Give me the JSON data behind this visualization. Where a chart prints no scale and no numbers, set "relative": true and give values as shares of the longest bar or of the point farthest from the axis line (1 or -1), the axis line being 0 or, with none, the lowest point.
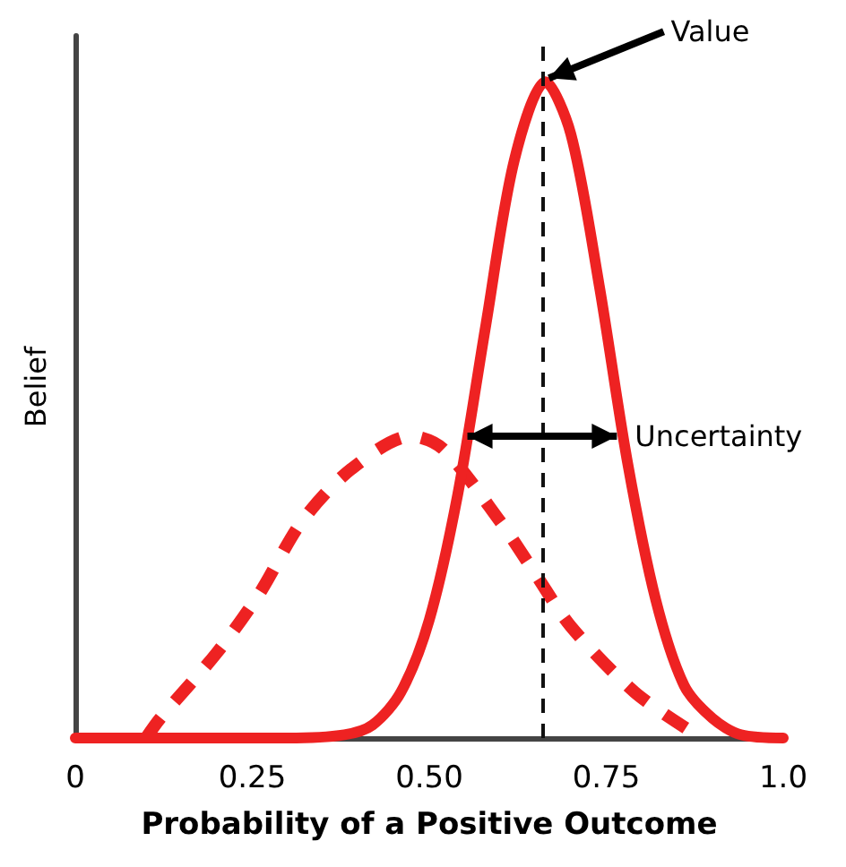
{
  "chart_data": {
    "type": "line",
    "relative": true,
    "xlabel": "Probability of a Positive Outcome",
    "ylabel": "Belief",
    "xlim": [
      0,
      1
    ],
    "xticks": [
      0,
      0.25,
      {
        "value": 0.5,
        "label": "0.50"
      },
      0.75,
      {
        "value": 1,
        "label": "1.0"
      }
    ],
    "grid": false,
    "marker": "none",
    "series": [
      {
        "color": "#ee2222",
        "line_style": "solid",
        "x": [
          0,
          0.3,
          0.38,
          0.42,
          0.46,
          0.5,
          0.54,
          0.58,
          0.62,
          0.664,
          0.7,
          0.74,
          0.78,
          0.82,
          0.86,
          0.9,
          0.94,
          1
        ],
        "values": [
          0,
          0,
          0.005,
          0.02,
          0.07,
          0.18,
          0.37,
          0.63,
          0.88,
          1,
          0.92,
          0.69,
          0.42,
          0.21,
          0.08,
          0.03,
          0.005,
          0
        ]
      },
      {
        "color": "#ee2222",
        "line_style": "dashed",
        "x": [
          0.1,
          0.12,
          0.2,
          0.26,
          0.32,
          0.39,
          0.475,
          0.52,
          0.6,
          0.65,
          0.7,
          0.79,
          0.87
        ],
        "values": [
          0,
          0.03,
          0.13,
          0.22,
          0.33,
          0.41,
          0.46,
          0.44,
          0.33,
          0.25,
          0.17,
          0.07,
          0.01
        ]
      }
    ],
    "ref_lines": [
      {
        "axis": "x",
        "value": 0.664,
        "color": "#111111",
        "line_style": "dashed"
      }
    ],
    "annotations": [
      {
        "text": "Value",
        "x": 0.664,
        "y": 1
      },
      {
        "text": "Uncertainty",
        "x": 0.765,
        "y": 0.46
      }
    ]
  }
}
